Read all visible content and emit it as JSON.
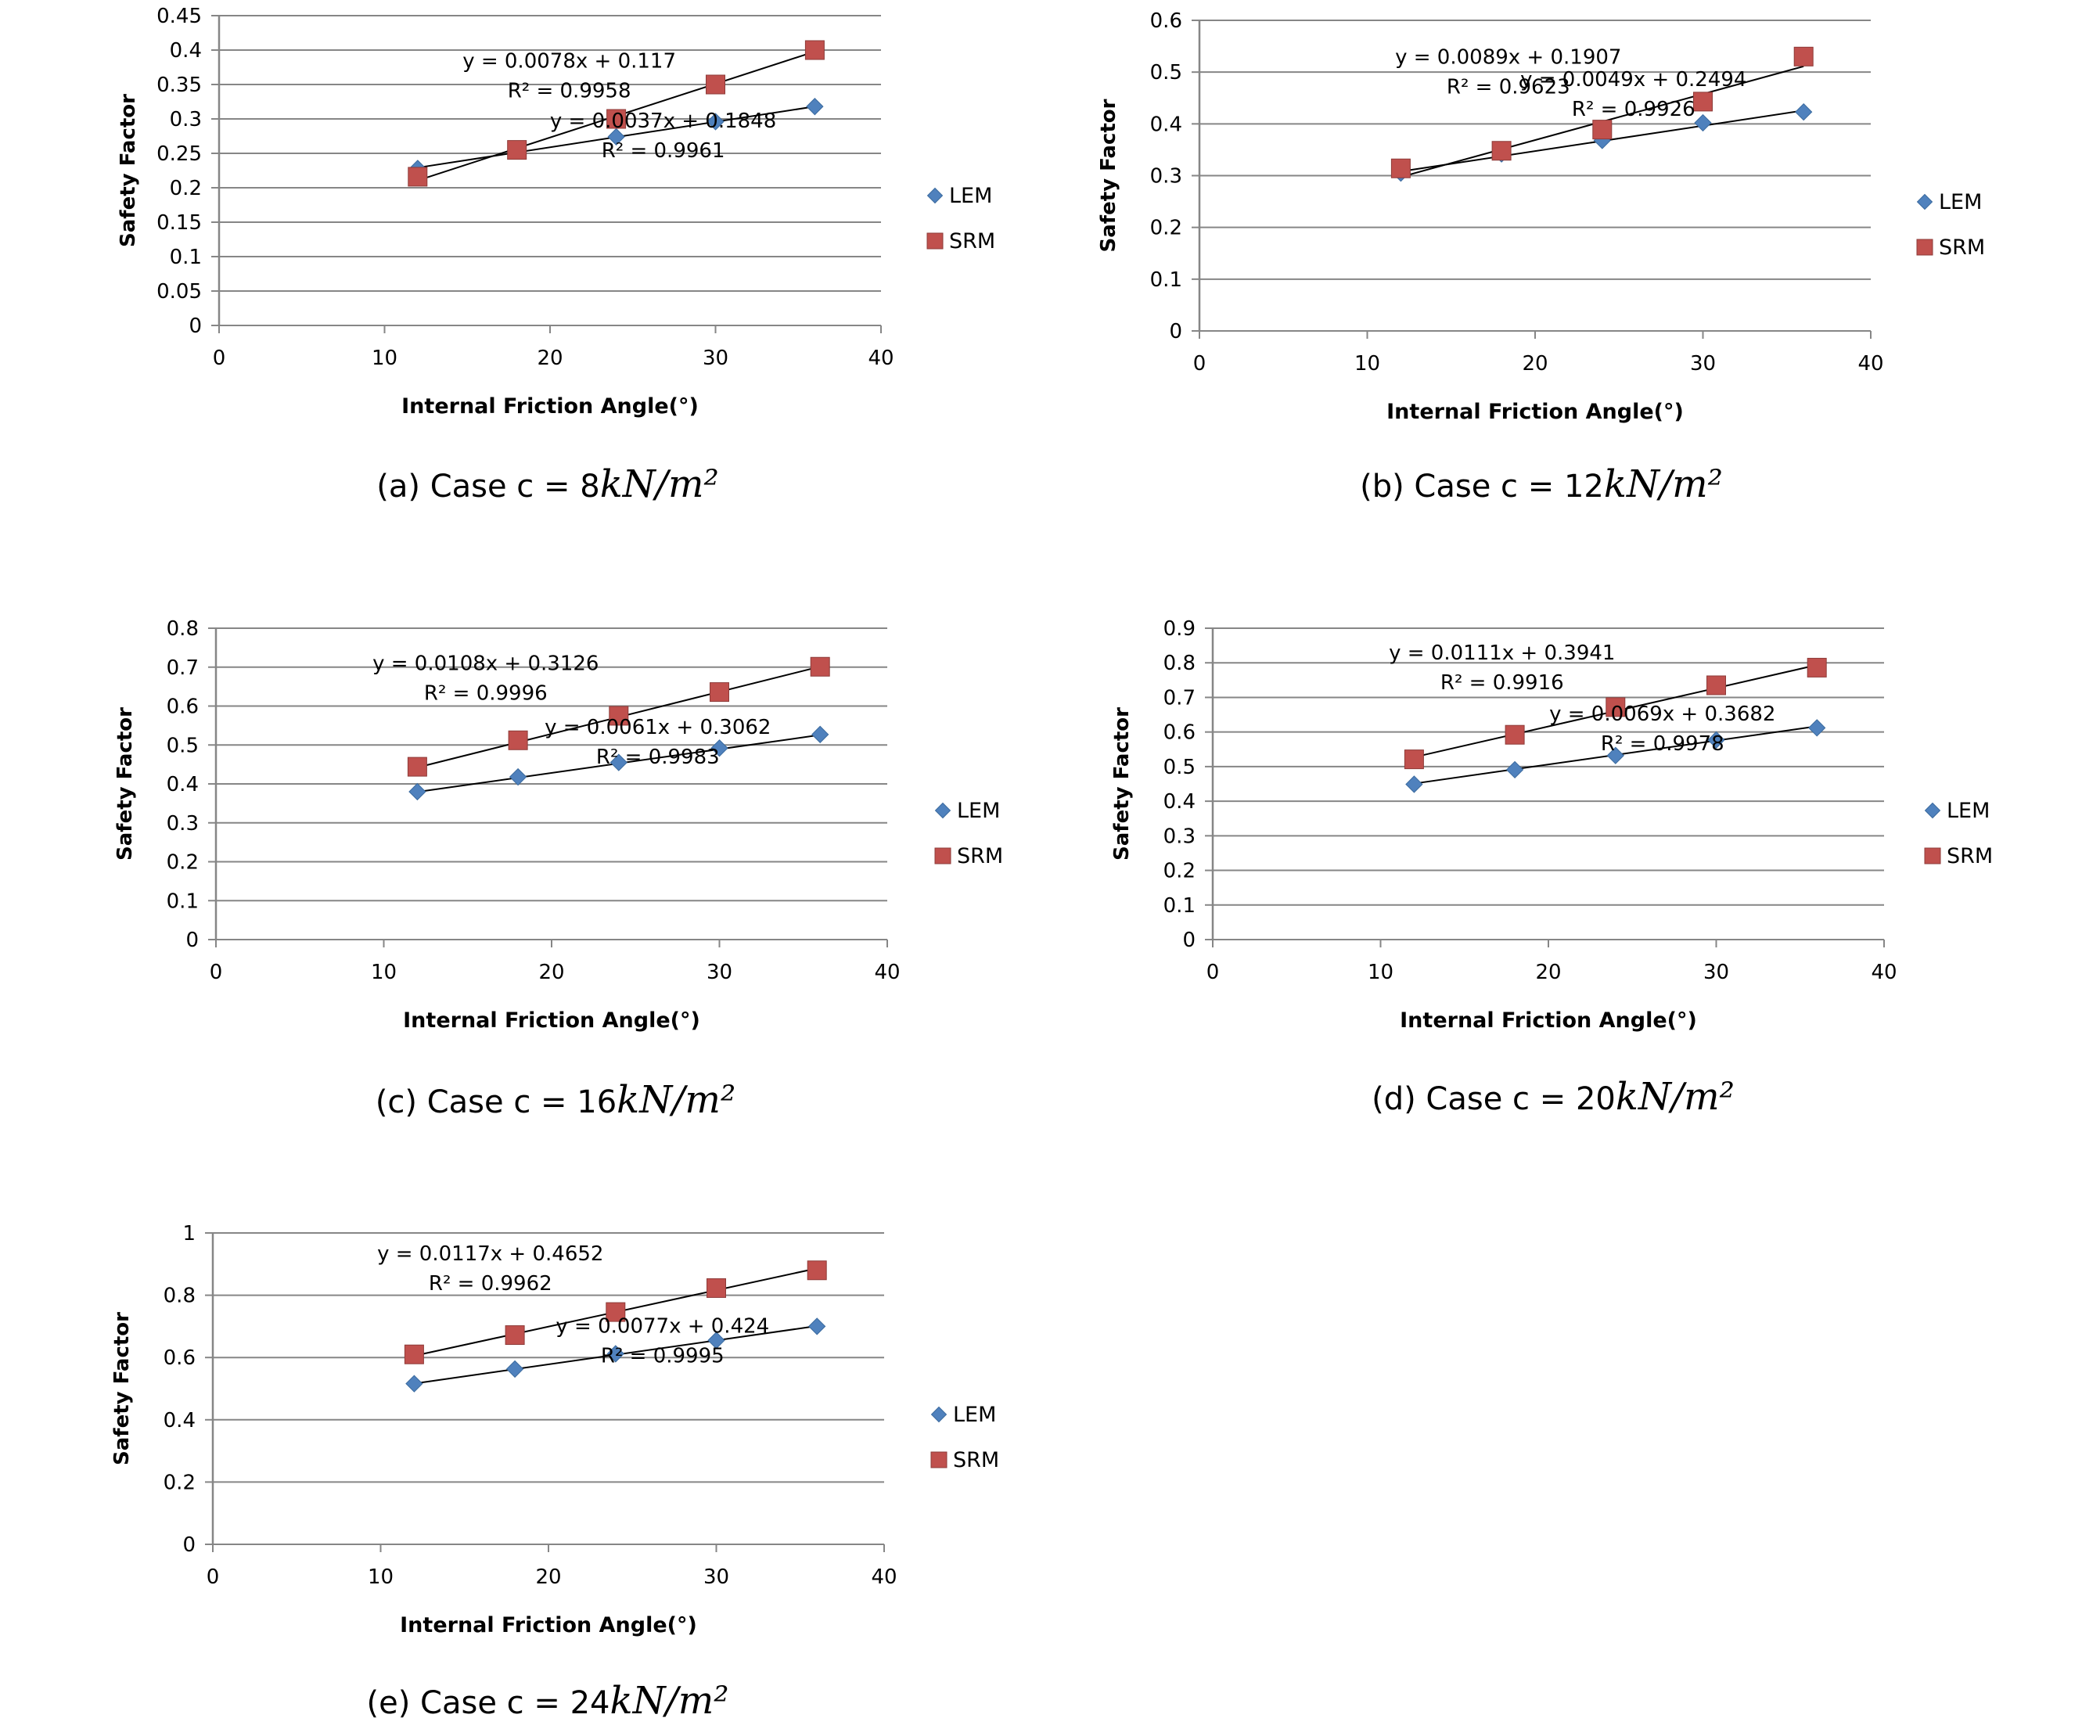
{
  "colors": {
    "lem": "#4f81bd",
    "srm": "#c0504d",
    "grid": "#868686",
    "trend": "#000000",
    "axis_text": "#000000"
  },
  "chart_data": [
    {
      "type": "scatter",
      "caption_prefix": "(a) Case c = 8",
      "caption_unit": "kN/m²",
      "xlabel": "Internal Friction Angle(°)",
      "ylabel": "Safety Factor",
      "xlim": [
        0,
        40
      ],
      "ylim": [
        0,
        0.45
      ],
      "xticks": [
        0,
        10,
        20,
        30,
        40
      ],
      "yticks": [
        0,
        0.05,
        0.1,
        0.15,
        0.2,
        0.25,
        0.3,
        0.35,
        0.4,
        0.45
      ],
      "ytick_labels": [
        "0",
        "0.05",
        "0.1",
        "0.15",
        "0.2",
        "0.25",
        "0.3",
        "0.35",
        "0.4",
        "0.45"
      ],
      "xtick_labels": [
        "0",
        "10",
        "20",
        "30",
        "40"
      ],
      "grid": true,
      "legend": "right",
      "series": [
        {
          "name": "LEM",
          "marker": "diamond",
          "x": [
            12,
            18,
            24,
            30,
            36
          ],
          "y": [
            0.228,
            0.255,
            0.274,
            0.296,
            0.318
          ],
          "trend_eq": "y = 0.0037x + 0.1848",
          "trend_r2": "R² = 0.9961",
          "slope": 0.0037,
          "intercept": 0.1848
        },
        {
          "name": "SRM",
          "marker": "square",
          "x": [
            12,
            18,
            24,
            30,
            36
          ],
          "y": [
            0.216,
            0.255,
            0.3,
            0.35,
            0.4
          ],
          "trend_eq": "y = 0.0078x + 0.117",
          "trend_r2": "R² = 0.9958",
          "slope": 0.0078,
          "intercept": 0.117
        }
      ]
    },
    {
      "type": "scatter",
      "caption_prefix": "(b) Case c = 12",
      "caption_unit": "kN/m²",
      "xlabel": "Internal Friction Angle(°)",
      "ylabel": "Safety Factor",
      "xlim": [
        0,
        40
      ],
      "ylim": [
        0,
        0.6
      ],
      "xticks": [
        0,
        10,
        20,
        30,
        40
      ],
      "yticks": [
        0,
        0.1,
        0.2,
        0.3,
        0.4,
        0.5,
        0.6
      ],
      "ytick_labels": [
        "0",
        "0.1",
        "0.2",
        "0.3",
        "0.4",
        "0.5",
        "0.6"
      ],
      "xtick_labels": [
        "0",
        "10",
        "20",
        "30",
        "40"
      ],
      "grid": true,
      "legend": "right",
      "series": [
        {
          "name": "LEM",
          "marker": "diamond",
          "x": [
            12,
            18,
            24,
            30,
            36
          ],
          "y": [
            0.305,
            0.342,
            0.368,
            0.402,
            0.423
          ],
          "trend_eq": "y = 0.0049x + 0.2494",
          "trend_r2": "R² = 0.9926",
          "slope": 0.0049,
          "intercept": 0.2494
        },
        {
          "name": "SRM",
          "marker": "square",
          "x": [
            12,
            18,
            24,
            30,
            36
          ],
          "y": [
            0.314,
            0.348,
            0.389,
            0.443,
            0.53
          ],
          "trend_eq": "y = 0.0089x + 0.1907",
          "trend_r2": "R² = 0.9623",
          "slope": 0.0089,
          "intercept": 0.1907
        }
      ]
    },
    {
      "type": "scatter",
      "caption_prefix": "(c) Case c = 16",
      "caption_unit": "kN/m²",
      "xlabel": "Internal Friction Angle(°)",
      "ylabel": "Safety Factor",
      "xlim": [
        0,
        40
      ],
      "ylim": [
        0,
        0.8
      ],
      "xticks": [
        0,
        10,
        20,
        30,
        40
      ],
      "yticks": [
        0,
        0.1,
        0.2,
        0.3,
        0.4,
        0.5,
        0.6,
        0.7,
        0.8
      ],
      "ytick_labels": [
        "0",
        "0.1",
        "0.2",
        "0.3",
        "0.4",
        "0.5",
        "0.6",
        "0.7",
        "0.8"
      ],
      "xtick_labels": [
        "0",
        "10",
        "20",
        "30",
        "40"
      ],
      "grid": true,
      "legend": "right",
      "series": [
        {
          "name": "LEM",
          "marker": "diamond",
          "x": [
            12,
            18,
            24,
            30,
            36
          ],
          "y": [
            0.38,
            0.418,
            0.455,
            0.492,
            0.527
          ],
          "trend_eq": "y = 0.0061x + 0.3062",
          "trend_r2": "R² = 0.9983",
          "slope": 0.0061,
          "intercept": 0.3062
        },
        {
          "name": "SRM",
          "marker": "square",
          "x": [
            12,
            18,
            24,
            30,
            36
          ],
          "y": [
            0.444,
            0.512,
            0.575,
            0.636,
            0.701
          ],
          "trend_eq": "y = 0.0108x + 0.3126",
          "trend_r2": "R² = 0.9996",
          "slope": 0.0108,
          "intercept": 0.3126
        }
      ]
    },
    {
      "type": "scatter",
      "caption_prefix": "(d) Case c = 20",
      "caption_unit": "kN/m²",
      "xlabel": "Internal Friction Angle(°)",
      "ylabel": "Safety Factor",
      "xlim": [
        0,
        40
      ],
      "ylim": [
        0,
        0.9
      ],
      "xticks": [
        0,
        10,
        20,
        30,
        40
      ],
      "yticks": [
        0,
        0.1,
        0.2,
        0.3,
        0.4,
        0.5,
        0.6,
        0.7,
        0.8,
        0.9
      ],
      "ytick_labels": [
        "0",
        "0.1",
        "0.2",
        "0.3",
        "0.4",
        "0.5",
        "0.6",
        "0.7",
        "0.8",
        "0.9"
      ],
      "xtick_labels": [
        "0",
        "10",
        "20",
        "30",
        "40"
      ],
      "grid": true,
      "legend": "right",
      "series": [
        {
          "name": "LEM",
          "marker": "diamond",
          "x": [
            12,
            18,
            24,
            30,
            36
          ],
          "y": [
            0.449,
            0.491,
            0.532,
            0.577,
            0.612
          ],
          "trend_eq": "y = 0.0069x + 0.3682",
          "trend_r2": "R² = 0.9978",
          "slope": 0.0069,
          "intercept": 0.3682
        },
        {
          "name": "SRM",
          "marker": "square",
          "x": [
            12,
            18,
            24,
            30,
            36
          ],
          "y": [
            0.521,
            0.592,
            0.672,
            0.735,
            0.786
          ],
          "trend_eq": "y = 0.0111x + 0.3941",
          "trend_r2": "R² = 0.9916",
          "slope": 0.0111,
          "intercept": 0.3941
        }
      ]
    },
    {
      "type": "scatter",
      "caption_prefix": "(e) Case c = 24",
      "caption_unit": "kN/m²",
      "xlabel": "Internal Friction Angle(°)",
      "ylabel": "Safety Factor",
      "xlim": [
        0,
        40
      ],
      "ylim": [
        0,
        1
      ],
      "xticks": [
        0,
        10,
        20,
        30,
        40
      ],
      "yticks": [
        0,
        0.2,
        0.4,
        0.6,
        0.8,
        1
      ],
      "ytick_labels": [
        "0",
        "0.2",
        "0.4",
        "0.6",
        "0.8",
        "1"
      ],
      "xtick_labels": [
        "0",
        "10",
        "20",
        "30",
        "40"
      ],
      "grid": true,
      "legend": "right",
      "series": [
        {
          "name": "LEM",
          "marker": "diamond",
          "x": [
            12,
            18,
            24,
            30,
            36
          ],
          "y": [
            0.516,
            0.563,
            0.612,
            0.655,
            0.7
          ],
          "trend_eq": "y = 0.0077x + 0.424",
          "trend_r2": "R² = 0.9995",
          "slope": 0.0077,
          "intercept": 0.424
        },
        {
          "name": "SRM",
          "marker": "square",
          "x": [
            12,
            18,
            24,
            30,
            36
          ],
          "y": [
            0.61,
            0.672,
            0.746,
            0.823,
            0.88
          ],
          "trend_eq": "y = 0.0117x + 0.4652",
          "trend_r2": "R² = 0.9962",
          "slope": 0.0117,
          "intercept": 0.4652
        }
      ]
    }
  ]
}
